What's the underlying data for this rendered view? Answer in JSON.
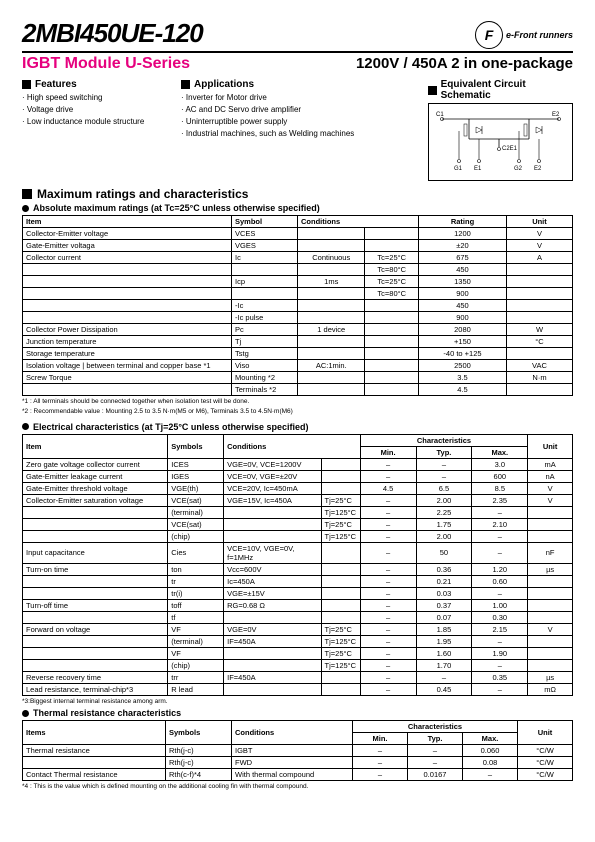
{
  "header": {
    "part_number": "2MBI450UE-120",
    "logo_letter": "F",
    "logo_text": "e-Front runners"
  },
  "subheader": {
    "series": "IGBT Module U-Series",
    "rating": "1200V / 450A  2 in one-package"
  },
  "features": {
    "title": "Features",
    "items": [
      "High speed switching",
      "Voltage drive",
      "Low inductance module structure"
    ]
  },
  "applications": {
    "title": "Applications",
    "items": [
      "Inverter for  Motor drive",
      "AC and DC Servo drive amplifier",
      "Uninterruptible power supply",
      "Industrial machines, such as Welding machines"
    ]
  },
  "circuit": {
    "title": "Equivalent Circuit Schematic",
    "labels": {
      "c1": "C1",
      "e2": "E2",
      "c2e1": "C2E1",
      "g1": "G1",
      "e1": "E1",
      "g2": "G2",
      "e2b": "E2"
    }
  },
  "max_ratings": {
    "title": "Maximum ratings and characteristics",
    "subtitle": "Absolute maximum ratings (at Tc=25°C unless otherwise specified)",
    "headers": [
      "Item",
      "Symbol",
      "Conditions",
      "Rating",
      "Unit"
    ],
    "rows": [
      {
        "item": "Collector-Emitter voltage",
        "sym": "VCES",
        "c1": "",
        "c2": "",
        "rating": "1200",
        "unit": "V"
      },
      {
        "item": "Gate-Emitter voltaga",
        "sym": "VGES",
        "c1": "",
        "c2": "",
        "rating": "±20",
        "unit": "V"
      },
      {
        "item": "Collector current",
        "sym": "Ic",
        "c1": "Continuous",
        "c2": "Tc=25°C",
        "rating": "675",
        "unit": "A"
      },
      {
        "item": "",
        "sym": "",
        "c1": "",
        "c2": "Tc=80°C",
        "rating": "450",
        "unit": ""
      },
      {
        "item": "",
        "sym": "Icp",
        "c1": "1ms",
        "c2": "Tc=25°C",
        "rating": "1350",
        "unit": ""
      },
      {
        "item": "",
        "sym": "",
        "c1": "",
        "c2": "Tc=80°C",
        "rating": "900",
        "unit": ""
      },
      {
        "item": "",
        "sym": "-Ic",
        "c1": "",
        "c2": "",
        "rating": "450",
        "unit": ""
      },
      {
        "item": "",
        "sym": "-Ic pulse",
        "c1": "",
        "c2": "",
        "rating": "900",
        "unit": ""
      },
      {
        "item": "Collector Power Dissipation",
        "sym": "Pc",
        "c1": "1 device",
        "c2": "",
        "rating": "2080",
        "unit": "W"
      },
      {
        "item": "Junction temperature",
        "sym": "Tj",
        "c1": "",
        "c2": "",
        "rating": "+150",
        "unit": "°C"
      },
      {
        "item": "Storage temperature",
        "sym": "Tstg",
        "c1": "",
        "c2": "",
        "rating": "-40 to +125",
        "unit": ""
      },
      {
        "item": "Isolation voltage | between terminal and copper base *1",
        "sym": "Viso",
        "c1": "AC:1min.",
        "c2": "",
        "rating": "2500",
        "unit": "VAC"
      },
      {
        "item": "Screw Torque",
        "sym": "Mounting *2",
        "c1": "",
        "c2": "",
        "rating": "3.5",
        "unit": "N·m"
      },
      {
        "item": "",
        "sym": "Terminals *2",
        "c1": "",
        "c2": "",
        "rating": "4.5",
        "unit": ""
      }
    ],
    "notes": [
      "*1 : All terminals should be connected together when isolation test will be done.",
      "*2 : Recommendable value : Mounting 2.5 to 3.5 N·m(M5 or M6), Terminals 3.5 to 4.5N·m(M6)"
    ]
  },
  "elec": {
    "title": "Electrical characteristics (at Tj=25°C unless otherwise specified)",
    "headers": [
      "Item",
      "Symbols",
      "Conditions",
      "Characteristics",
      "Unit"
    ],
    "subheaders": [
      "Min.",
      "Typ.",
      "Max."
    ],
    "rows": [
      {
        "item": "Zero gate voltage collector current",
        "sym": "ICES",
        "c1": "VGE=0V,  VCE=1200V",
        "c2": "",
        "min": "–",
        "typ": "–",
        "max": "3.0",
        "unit": "mA"
      },
      {
        "item": "Gate-Emitter leakage current",
        "sym": "IGES",
        "c1": "VCE=0V,  VGE=±20V",
        "c2": "",
        "min": "–",
        "typ": "–",
        "max": "600",
        "unit": "nA"
      },
      {
        "item": "Gate-Emitter threshold voltage",
        "sym": "VGE(th)",
        "c1": "VCE=20V,  Ic=450mA",
        "c2": "",
        "min": "4.5",
        "typ": "6.5",
        "max": "8.5",
        "unit": "V"
      },
      {
        "item": "Collector-Emitter saturation voltage",
        "sym": "VCE(sat)",
        "c1": "VGE=15V, Ic=450A",
        "c2": "Tj=25°C",
        "min": "–",
        "typ": "2.00",
        "max": "2.35",
        "unit": "V"
      },
      {
        "item": "",
        "sym": "(terminal)",
        "c1": "",
        "c2": "Tj=125°C",
        "min": "–",
        "typ": "2.25",
        "max": "–",
        "unit": ""
      },
      {
        "item": "",
        "sym": "VCE(sat)",
        "c1": "",
        "c2": "Tj=25°C",
        "min": "–",
        "typ": "1.75",
        "max": "2.10",
        "unit": ""
      },
      {
        "item": "",
        "sym": "(chip)",
        "c1": "",
        "c2": "Tj=125°C",
        "min": "–",
        "typ": "2.00",
        "max": "–",
        "unit": ""
      },
      {
        "item": "Input capacitance",
        "sym": "Cies",
        "c1": "VCE=10V, VGE=0V, f=1MHz",
        "c2": "",
        "min": "–",
        "typ": "50",
        "max": "–",
        "unit": "nF"
      },
      {
        "item": "Turn-on time",
        "sym": "ton",
        "c1": "Vcc=600V",
        "c2": "",
        "min": "–",
        "typ": "0.36",
        "max": "1.20",
        "unit": "µs"
      },
      {
        "item": "",
        "sym": "tr",
        "c1": "Ic=450A",
        "c2": "",
        "min": "–",
        "typ": "0.21",
        "max": "0.60",
        "unit": ""
      },
      {
        "item": "",
        "sym": "tr(i)",
        "c1": "VGE=±15V",
        "c2": "",
        "min": "–",
        "typ": "0.03",
        "max": "–",
        "unit": ""
      },
      {
        "item": "Turn-off time",
        "sym": "toff",
        "c1": "RG=0.68 Ω",
        "c2": "",
        "min": "–",
        "typ": "0.37",
        "max": "1.00",
        "unit": ""
      },
      {
        "item": "",
        "sym": "tf",
        "c1": "",
        "c2": "",
        "min": "–",
        "typ": "0.07",
        "max": "0.30",
        "unit": ""
      },
      {
        "item": "Forward on voltage",
        "sym": "VF",
        "c1": "VGE=0V",
        "c2": "Tj=25°C",
        "min": "–",
        "typ": "1.85",
        "max": "2.15",
        "unit": "V"
      },
      {
        "item": "",
        "sym": "(terminal)",
        "c1": "IF=450A",
        "c2": "Tj=125°C",
        "min": "–",
        "typ": "1.95",
        "max": "–",
        "unit": ""
      },
      {
        "item": "",
        "sym": "VF",
        "c1": "",
        "c2": "Tj=25°C",
        "min": "–",
        "typ": "1.60",
        "max": "1.90",
        "unit": ""
      },
      {
        "item": "",
        "sym": "(chip)",
        "c1": "",
        "c2": "Tj=125°C",
        "min": "–",
        "typ": "1.70",
        "max": "–",
        "unit": ""
      },
      {
        "item": "Reverse recovery time",
        "sym": "trr",
        "c1": "IF=450A",
        "c2": "",
        "min": "–",
        "typ": "–",
        "max": "0.35",
        "unit": "µs"
      },
      {
        "item": "Lead resistance, terminal-chip*3",
        "sym": "R lead",
        "c1": "",
        "c2": "",
        "min": "–",
        "typ": "0.45",
        "max": "–",
        "unit": "mΩ"
      }
    ],
    "note": "*3:Biggest internal terminal resistance among arm."
  },
  "thermal": {
    "title": "Thermal resistance characteristics",
    "headers": [
      "Items",
      "Symbols",
      "Conditions",
      "Characteristics",
      "Unit"
    ],
    "subheaders": [
      "Min.",
      "Typ.",
      "Max."
    ],
    "rows": [
      {
        "item": "Thermal resistance",
        "sym": "Rth(j-c)",
        "cond": "IGBT",
        "min": "–",
        "typ": "–",
        "max": "0.060",
        "unit": "°C/W"
      },
      {
        "item": "",
        "sym": "Rth(j-c)",
        "cond": "FWD",
        "min": "–",
        "typ": "–",
        "max": "0.08",
        "unit": "°C/W"
      },
      {
        "item": "Contact Thermal resistance",
        "sym": "Rth(c-f)*4",
        "cond": "With thermal compound",
        "min": "–",
        "typ": "0.0167",
        "max": "–",
        "unit": "°C/W"
      }
    ],
    "note": "*4 :  This is the value which is defined mounting on the additional cooling fin with thermal compound."
  }
}
